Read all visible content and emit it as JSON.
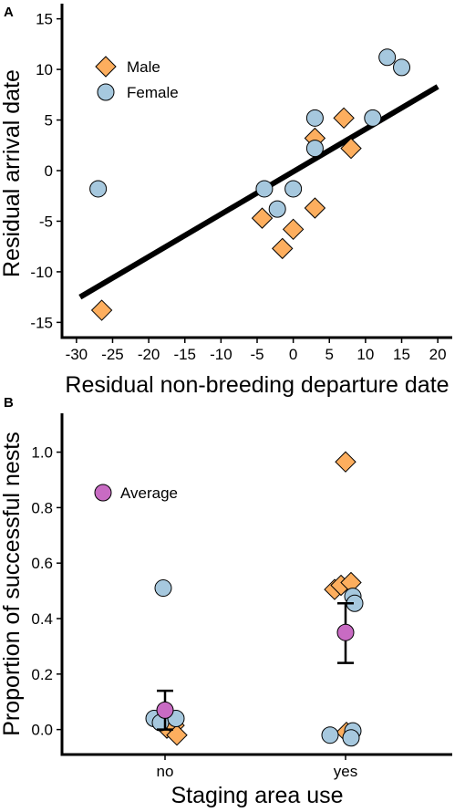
{
  "chart_data": [
    {
      "type": "scatter",
      "panel_label": "A",
      "xlabel": "Residual non-breeding departure date",
      "ylabel": "Residual arrival date",
      "xlim": [
        -32,
        22
      ],
      "ylim": [
        -16.5,
        16.5
      ],
      "x_ticks": [
        -30,
        -25,
        -20,
        -15,
        -10,
        -5,
        0,
        5,
        10,
        15,
        20
      ],
      "y_ticks": [
        -15,
        -10,
        -5,
        0,
        5,
        10,
        15
      ],
      "grid": false,
      "legend_position": "top-left",
      "series": [
        {
          "name": "Male",
          "marker": "diamond",
          "color": "#FDAE5E",
          "points": [
            {
              "x": -26.5,
              "y": -13.8
            },
            {
              "x": -4.3,
              "y": -4.7
            },
            {
              "x": -1.5,
              "y": -7.7
            },
            {
              "x": 0,
              "y": -5.8
            },
            {
              "x": 3,
              "y": -3.7
            },
            {
              "x": 3,
              "y": 3.2
            },
            {
              "x": 7,
              "y": 5.2
            },
            {
              "x": 8,
              "y": 2.2
            }
          ]
        },
        {
          "name": "Female",
          "marker": "circle",
          "color": "#A6C8DE",
          "points": [
            {
              "x": -27,
              "y": -1.8
            },
            {
              "x": -4,
              "y": -1.8
            },
            {
              "x": -2.2,
              "y": -3.8
            },
            {
              "x": 0,
              "y": -1.8
            },
            {
              "x": 3,
              "y": 5.2
            },
            {
              "x": 3,
              "y": 2.2
            },
            {
              "x": 11,
              "y": 5.2
            },
            {
              "x": 13,
              "y": 11.2
            },
            {
              "x": 15,
              "y": 10.2
            }
          ]
        }
      ],
      "regression_line": {
        "x": [
          -29.5,
          20
        ],
        "y": [
          -12.5,
          8.3
        ]
      }
    },
    {
      "type": "scatter",
      "panel_label": "B",
      "xlabel": "Staging area use",
      "ylabel": "Proportion of successful nests",
      "categories": [
        "no",
        "yes"
      ],
      "ylim": [
        -0.09,
        1.14
      ],
      "y_ticks": [
        0.0,
        0.2,
        0.4,
        0.6,
        0.8,
        1.0
      ],
      "y_tick_labels": [
        "0.0",
        "0.2",
        "0.4",
        "0.6",
        "0.8",
        "1.0"
      ],
      "grid": false,
      "legend_position": "top-left",
      "legend": [
        {
          "name": "Average",
          "marker": "circle",
          "color": "#C86BC3"
        }
      ],
      "series": [
        {
          "marker": "diamond",
          "color": "#FDAE5E",
          "points": [
            {
              "category": "no",
              "offset": 0.02,
              "y": 0.005
            },
            {
              "category": "no",
              "offset": 0.1,
              "y": 0.015
            },
            {
              "category": "no",
              "offset": 0.13,
              "y": -0.02
            },
            {
              "category": "yes",
              "offset": -0.12,
              "y": 0.505
            },
            {
              "category": "yes",
              "offset": -0.05,
              "y": 0.52
            },
            {
              "category": "yes",
              "offset": 0,
              "y": 0.965
            },
            {
              "category": "yes",
              "offset": 0.06,
              "y": 0.53
            },
            {
              "category": "yes",
              "offset": 0.01,
              "y": -0.01
            }
          ]
        },
        {
          "marker": "circle",
          "color": "#A6C8DE",
          "points": [
            {
              "category": "no",
              "offset": -0.12,
              "y": 0.04
            },
            {
              "category": "no",
              "offset": -0.05,
              "y": 0.025
            },
            {
              "category": "no",
              "offset": 0.12,
              "y": 0.04
            },
            {
              "category": "no",
              "offset": -0.02,
              "y": 0.51
            },
            {
              "category": "yes",
              "offset": -0.17,
              "y": -0.02
            },
            {
              "category": "yes",
              "offset": 0.08,
              "y": -0.005
            },
            {
              "category": "yes",
              "offset": 0.06,
              "y": -0.03
            },
            {
              "category": "yes",
              "offset": 0.08,
              "y": 0.48
            },
            {
              "category": "yes",
              "offset": 0.1,
              "y": 0.455
            }
          ]
        }
      ],
      "averages": [
        {
          "category": "no",
          "mean": 0.07,
          "lower": 0.0,
          "upper": 0.14
        },
        {
          "category": "yes",
          "mean": 0.35,
          "lower": 0.24,
          "upper": 0.455
        }
      ]
    }
  ]
}
